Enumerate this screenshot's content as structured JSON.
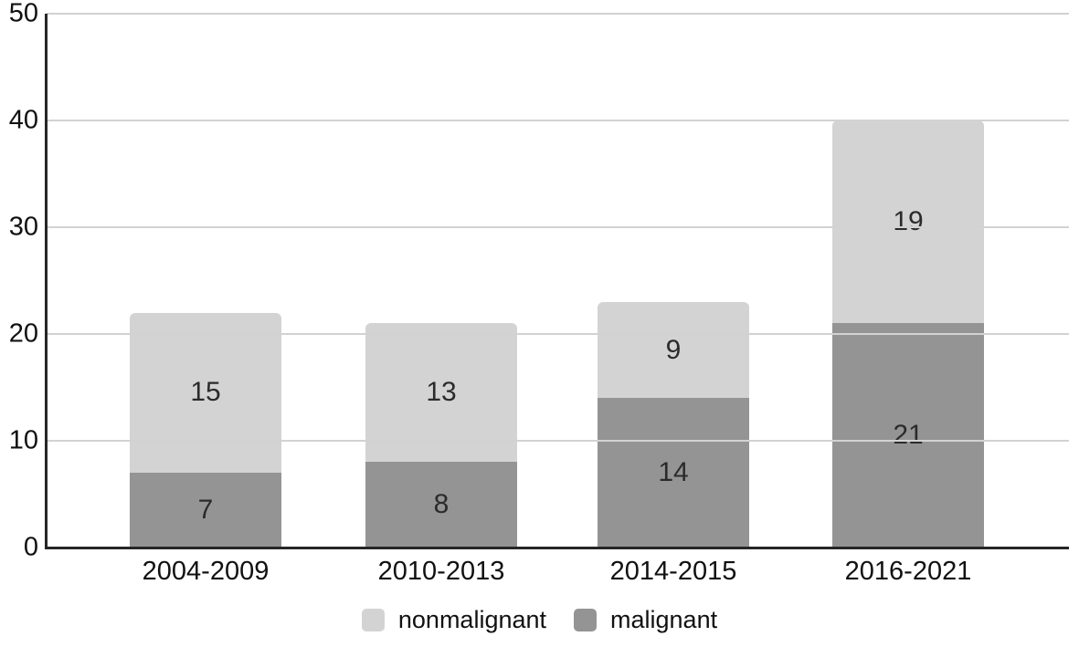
{
  "chart_data": {
    "type": "bar",
    "stacked": true,
    "categories": [
      "2004-2009",
      "2010-2013",
      "2014-2015",
      "2016-2021"
    ],
    "series": [
      {
        "name": "malignant",
        "color": "#949494",
        "values": [
          7,
          8,
          14,
          21
        ]
      },
      {
        "name": "nonmalignant",
        "color": "#d3d3d3",
        "values": [
          15,
          13,
          9,
          19
        ]
      }
    ],
    "totals": [
      22,
      21,
      23,
      40
    ],
    "value_labels_shown": true,
    "y_axis": {
      "ticks": [
        "0",
        "10",
        "20",
        "30",
        "40",
        "50"
      ],
      "tick_values": [
        0,
        10,
        20,
        30,
        40,
        50
      ],
      "range": [
        0,
        50
      ]
    },
    "grid": true,
    "legend": {
      "position": "bottom",
      "entries": [
        {
          "label": "nonmalignant",
          "color": "#d3d3d3"
        },
        {
          "label": "malignant",
          "color": "#949494"
        }
      ]
    },
    "colors": {
      "background": "#ffffff",
      "axis": "#262626",
      "gridline": "#d2d2d2",
      "text": "#111111"
    }
  }
}
